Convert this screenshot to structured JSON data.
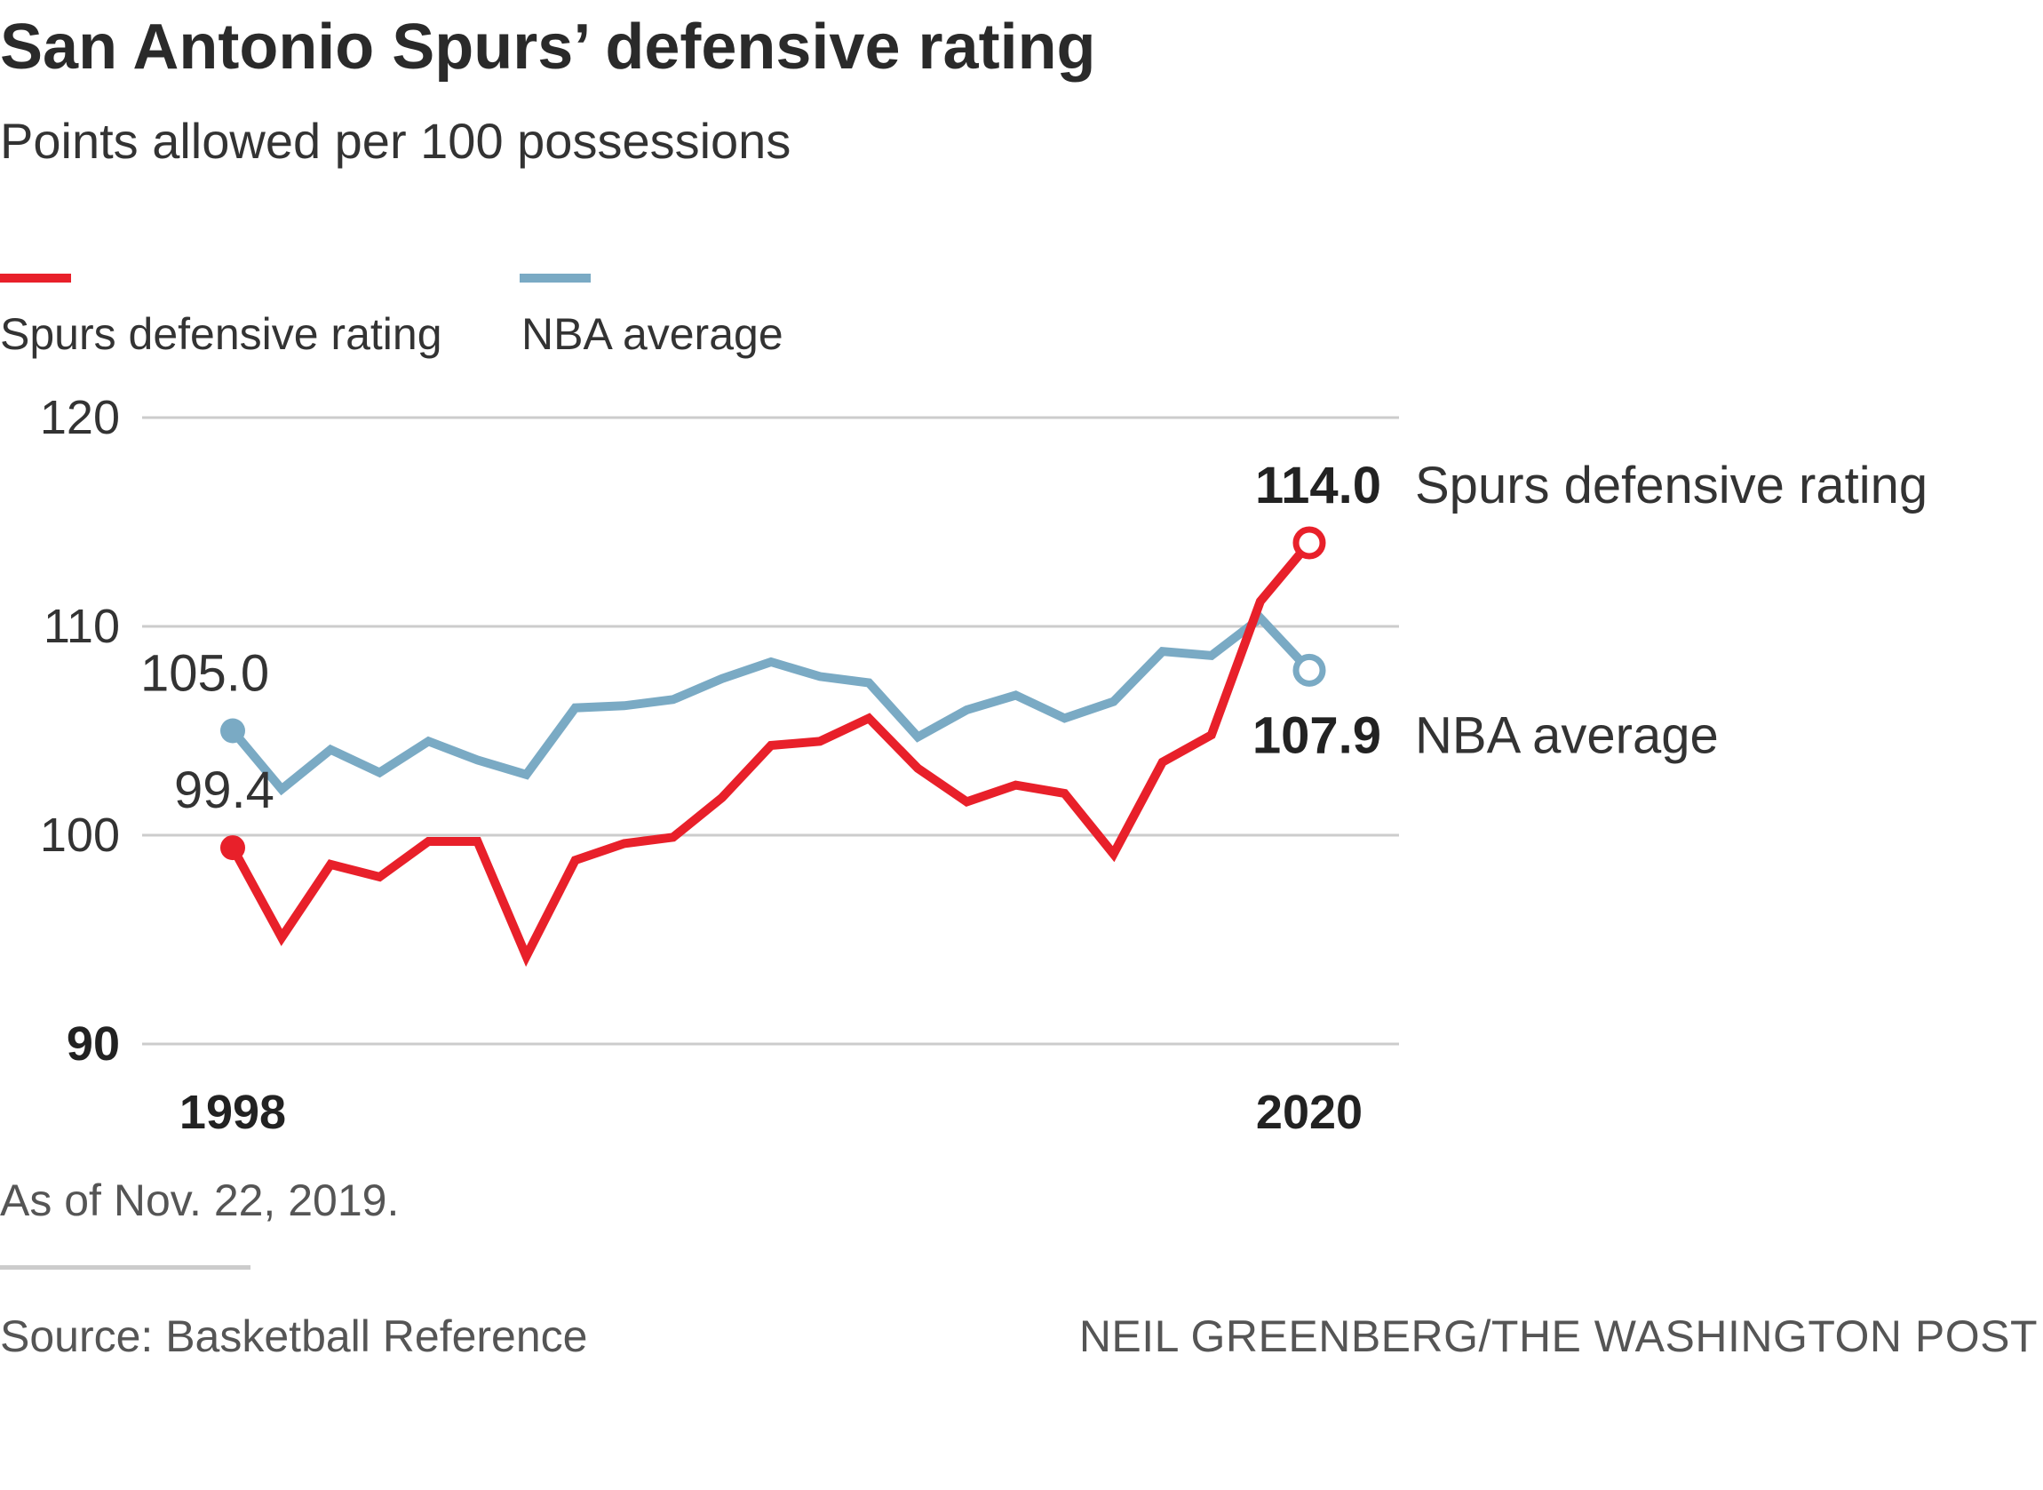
{
  "chart_data": {
    "type": "line",
    "title": "San Antonio Spurs’ defensive rating",
    "subtitle": "Points allowed per 100 possessions",
    "x": [
      1998,
      1999,
      2000,
      2001,
      2002,
      2003,
      2004,
      2005,
      2006,
      2007,
      2008,
      2009,
      2010,
      2011,
      2012,
      2013,
      2014,
      2015,
      2016,
      2017,
      2018,
      2019,
      2020
    ],
    "x_tick_labels": [
      "1998",
      "2020"
    ],
    "y_ticks": [
      90,
      100,
      110,
      120
    ],
    "ylim": [
      90,
      120
    ],
    "xlim": [
      1998,
      2020
    ],
    "grid": true,
    "series": [
      {
        "name": "Spurs defensive rating",
        "color": "#e8202a",
        "values": [
          99.4,
          95.1,
          98.6,
          98.0,
          99.7,
          99.7,
          94.2,
          98.8,
          99.6,
          99.9,
          101.8,
          104.3,
          104.5,
          105.6,
          103.2,
          101.6,
          102.4,
          102.0,
          99.1,
          103.5,
          104.8,
          111.2,
          114.0
        ],
        "start_label": "99.4",
        "end_label": "114.0"
      },
      {
        "name": "NBA average",
        "color": "#7aaac4",
        "values": [
          105.0,
          102.2,
          104.1,
          103.0,
          104.5,
          103.6,
          102.9,
          106.1,
          106.2,
          106.5,
          107.5,
          108.3,
          107.6,
          107.3,
          104.7,
          106.0,
          106.7,
          105.6,
          106.4,
          108.8,
          108.6,
          110.4,
          107.9
        ],
        "start_label": "105.0",
        "end_label": "107.9"
      }
    ],
    "legend": [
      "Spurs defensive rating",
      "NBA average"
    ],
    "legend_position": "top-left"
  },
  "footer": {
    "note": "As of Nov. 22, 2019.",
    "source": "Source: Basketball Reference",
    "credit": "NEIL GREENBERG/THE WASHINGTON POST"
  }
}
